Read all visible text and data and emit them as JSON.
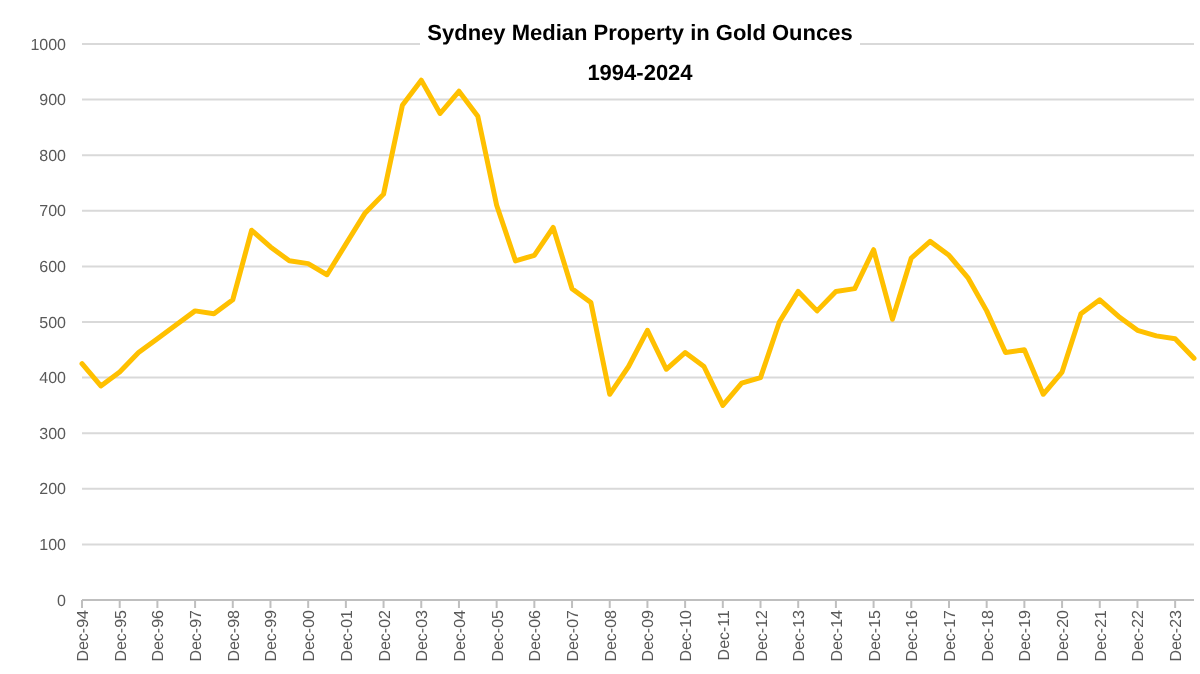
{
  "chart_data": {
    "type": "line",
    "title": "Sydney Median Property in Gold Ounces",
    "subtitle": "1994-2024",
    "categories": [
      "Dec-94",
      null,
      "Dec-95",
      null,
      "Dec-96",
      null,
      "Dec-97",
      null,
      "Dec-98",
      null,
      "Dec-99",
      null,
      "Dec-00",
      null,
      "Dec-01",
      null,
      "Dec-02",
      null,
      "Dec-03",
      null,
      "Dec-04",
      null,
      "Dec-05",
      null,
      "Dec-06",
      null,
      "Dec-07",
      null,
      "Dec-08",
      null,
      "Dec-09",
      null,
      "Dec-10",
      null,
      "Dec-11",
      null,
      "Dec-12",
      null,
      "Dec-13",
      null,
      "Dec-14",
      null,
      "Dec-15",
      null,
      "Dec-16",
      null,
      "Dec-17",
      null,
      "Dec-18",
      null,
      "Dec-19",
      null,
      "Dec-20",
      null,
      "Dec-21",
      null,
      "Dec-22",
      null,
      "Dec-23",
      null
    ],
    "series": [
      {
        "color": "#ffc000",
        "values": [
          425,
          385,
          410,
          445,
          470,
          495,
          520,
          515,
          540,
          665,
          635,
          610,
          605,
          585,
          640,
          695,
          730,
          890,
          935,
          875,
          915,
          870,
          710,
          610,
          620,
          670,
          560,
          535,
          370,
          420,
          485,
          415,
          445,
          420,
          350,
          390,
          400,
          500,
          555,
          520,
          555,
          560,
          630,
          505,
          615,
          645,
          620,
          580,
          520,
          445,
          450,
          370,
          410,
          515,
          540,
          510,
          485,
          475,
          470,
          435
        ]
      }
    ],
    "ylim": [
      0,
      1000
    ],
    "yticks": [
      0,
      100,
      200,
      300,
      400,
      500,
      600,
      700,
      800,
      900,
      1000
    ],
    "grid": "y",
    "marker": "none",
    "line_style": "solid"
  }
}
